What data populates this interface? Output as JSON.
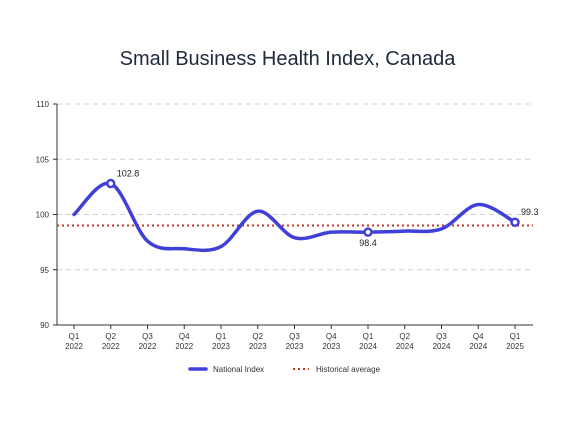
{
  "chart_data": {
    "type": "line",
    "title": "Small Business Health Index, Canada",
    "xlabel": "",
    "ylabel": "",
    "categories": [
      [
        "Q1",
        "2022"
      ],
      [
        "Q2",
        "2022"
      ],
      [
        "Q3",
        "2022"
      ],
      [
        "Q4",
        "2022"
      ],
      [
        "Q1",
        "2023"
      ],
      [
        "Q2",
        "2023"
      ],
      [
        "Q3",
        "2023"
      ],
      [
        "Q4",
        "2023"
      ],
      [
        "Q1",
        "2024"
      ],
      [
        "Q2",
        "2024"
      ],
      [
        "Q3",
        "2024"
      ],
      [
        "Q4",
        "2024"
      ],
      [
        "Q1",
        "2025"
      ]
    ],
    "ylim": [
      90,
      110
    ],
    "yticks": [
      "90",
      "95",
      "100",
      "105",
      "110"
    ],
    "grid": true,
    "legend_position": "bottom",
    "series": [
      {
        "name": "National Index",
        "style": "solid",
        "color": "#4040d8",
        "values": [
          100.0,
          102.8,
          97.6,
          96.9,
          97.1,
          100.3,
          97.9,
          98.4,
          98.4,
          98.5,
          98.7,
          100.9,
          99.3
        ]
      },
      {
        "name": "Historical average",
        "style": "dotted",
        "color": "#c0392b",
        "values": [
          99.0,
          99.0,
          99.0,
          99.0,
          99.0,
          99.0,
          99.0,
          99.0,
          99.0,
          99.0,
          99.0,
          99.0,
          99.0
        ]
      }
    ],
    "annotations": [
      {
        "index": 1,
        "label": "102.8",
        "placement": "above-right"
      },
      {
        "index": 8,
        "label": "98.4",
        "placement": "below"
      },
      {
        "index": 12,
        "label": "99.3",
        "placement": "above-right"
      }
    ]
  }
}
